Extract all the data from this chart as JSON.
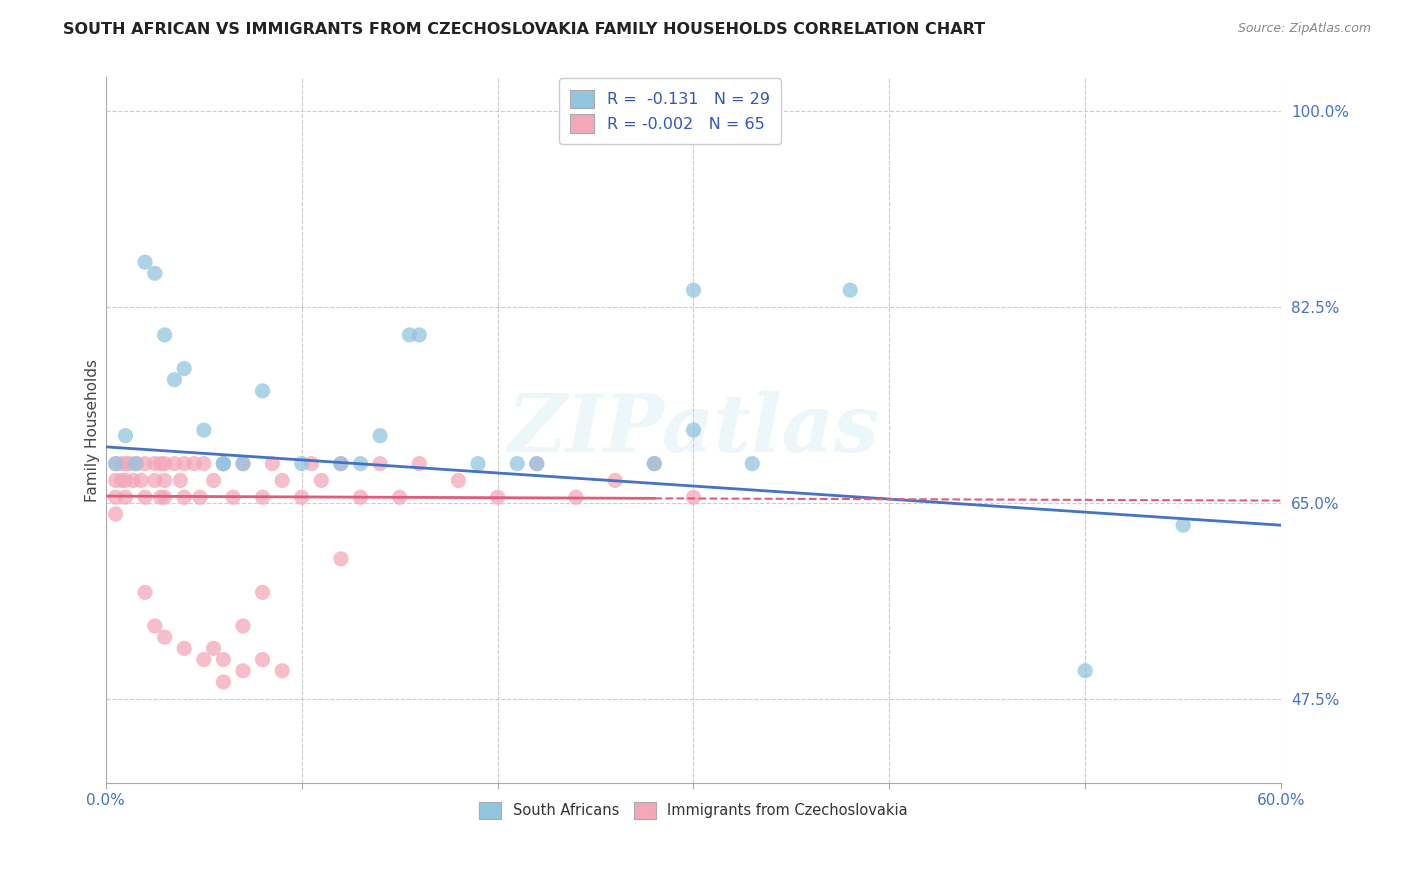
{
  "title": "SOUTH AFRICAN VS IMMIGRANTS FROM CZECHOSLOVAKIA FAMILY HOUSEHOLDS CORRELATION CHART",
  "source": "Source: ZipAtlas.com",
  "ylabel": "Family Households",
  "xlim": [
    0.0,
    0.6
  ],
  "ylim": [
    0.4,
    1.03
  ],
  "xticks": [
    0.0,
    0.1,
    0.2,
    0.3,
    0.4,
    0.5,
    0.6
  ],
  "xticklabels": [
    "0.0%",
    "",
    "",
    "",
    "",
    "",
    "60.0%"
  ],
  "yticks_right": [
    0.475,
    0.65,
    0.825,
    1.0
  ],
  "yticklabels_right": [
    "47.5%",
    "65.0%",
    "82.5%",
    "100.0%"
  ],
  "color_blue": "#92C5DE",
  "color_pink": "#F4A7B9",
  "line_blue": "#4472C4",
  "line_pink": "#E05C7A",
  "blue_scatter_x": [
    0.005,
    0.01,
    0.015,
    0.02,
    0.025,
    0.03,
    0.035,
    0.04,
    0.05,
    0.06,
    0.08,
    0.1,
    0.13,
    0.14,
    0.155,
    0.16,
    0.21,
    0.22,
    0.28,
    0.3,
    0.33,
    0.38,
    0.5,
    0.55,
    0.3,
    0.06,
    0.07,
    0.12,
    0.19
  ],
  "blue_scatter_y": [
    0.685,
    0.71,
    0.685,
    0.865,
    0.855,
    0.8,
    0.76,
    0.77,
    0.715,
    0.685,
    0.75,
    0.685,
    0.685,
    0.71,
    0.8,
    0.8,
    0.685,
    0.685,
    0.685,
    0.715,
    0.685,
    0.84,
    0.5,
    0.63,
    0.84,
    0.685,
    0.685,
    0.685,
    0.685
  ],
  "pink_scatter_x": [
    0.005,
    0.005,
    0.005,
    0.005,
    0.008,
    0.008,
    0.01,
    0.01,
    0.01,
    0.012,
    0.014,
    0.016,
    0.018,
    0.02,
    0.02,
    0.025,
    0.025,
    0.028,
    0.028,
    0.03,
    0.03,
    0.03,
    0.035,
    0.038,
    0.04,
    0.04,
    0.045,
    0.048,
    0.05,
    0.055,
    0.06,
    0.065,
    0.07,
    0.08,
    0.085,
    0.09,
    0.1,
    0.105,
    0.11,
    0.12,
    0.13,
    0.14,
    0.15,
    0.16,
    0.18,
    0.2,
    0.22,
    0.24,
    0.26,
    0.28,
    0.3,
    0.12,
    0.08,
    0.07,
    0.06,
    0.05,
    0.04,
    0.03,
    0.025,
    0.02,
    0.055,
    0.06,
    0.07,
    0.08,
    0.09
  ],
  "pink_scatter_y": [
    0.685,
    0.67,
    0.655,
    0.64,
    0.685,
    0.67,
    0.685,
    0.67,
    0.655,
    0.685,
    0.67,
    0.685,
    0.67,
    0.685,
    0.655,
    0.685,
    0.67,
    0.685,
    0.655,
    0.685,
    0.67,
    0.655,
    0.685,
    0.67,
    0.685,
    0.655,
    0.685,
    0.655,
    0.685,
    0.67,
    0.685,
    0.655,
    0.685,
    0.655,
    0.685,
    0.67,
    0.655,
    0.685,
    0.67,
    0.685,
    0.655,
    0.685,
    0.655,
    0.685,
    0.67,
    0.655,
    0.685,
    0.655,
    0.67,
    0.685,
    0.655,
    0.6,
    0.57,
    0.54,
    0.51,
    0.51,
    0.52,
    0.53,
    0.54,
    0.57,
    0.52,
    0.49,
    0.5,
    0.51,
    0.5
  ],
  "blue_line_x0": 0.0,
  "blue_line_y0": 0.7,
  "blue_line_x1": 0.6,
  "blue_line_y1": 0.63,
  "pink_line_solid_x0": 0.0,
  "pink_line_solid_y0": 0.656,
  "pink_line_solid_x1": 0.28,
  "pink_line_solid_y1": 0.654,
  "pink_line_dash_x0": 0.28,
  "pink_line_dash_y0": 0.654,
  "pink_line_dash_x1": 0.6,
  "pink_line_dash_y1": 0.652,
  "watermark": "ZIPatlas",
  "background_color": "#FFFFFF",
  "grid_color": "#CCCCCC"
}
